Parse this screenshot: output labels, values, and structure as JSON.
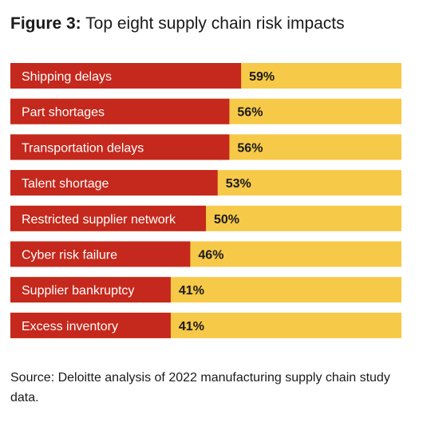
{
  "title": {
    "figure_label": "Figure 3:",
    "text": "Top eight supply chain risk impacts"
  },
  "colors": {
    "bar": "#c5281c",
    "remainder": "#f7c948",
    "bar_label": "#ffffff",
    "value_label": "#1a1a1a"
  },
  "chart_data": {
    "type": "bar",
    "orientation": "horizontal",
    "stacked_to_total": 100,
    "categories": [
      "Shipping delays",
      "Part shortages",
      "Transportation delays",
      "Talent shortage",
      "Restricted supplier network",
      "Cyber risk failure",
      "Supplier bankruptcy",
      "Excess inventory"
    ],
    "values": [
      59,
      56,
      56,
      53,
      50,
      46,
      41,
      41
    ],
    "value_labels": [
      "59%",
      "56%",
      "56%",
      "53%",
      "50%",
      "46%",
      "41%",
      "41%"
    ],
    "xlim": [
      0,
      100
    ],
    "grid": false,
    "legend": "none"
  },
  "source": "Source: Deloitte analysis of 2022 manufacturing supply chain study data."
}
